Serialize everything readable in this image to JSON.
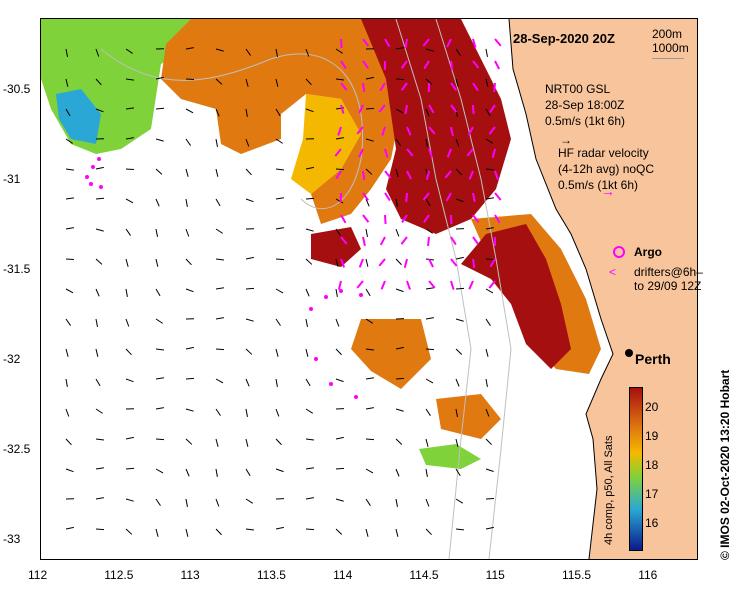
{
  "map": {
    "date_label": "28-Sep-2020 20Z",
    "depth_contours": [
      "200m",
      "1000m"
    ],
    "credit": "©  IMOS 02-Oct-2020 13:20 Hobart",
    "city": "Perth"
  },
  "axes": {
    "x_ticks": [
      "112",
      "112.5",
      "113",
      "113.5",
      "114",
      "114.5",
      "115",
      "115.5",
      "116"
    ],
    "x_values": [
      112,
      112.5,
      113,
      113.5,
      114,
      114.5,
      115,
      115.5,
      116
    ],
    "y_ticks": [
      "-30.5",
      "-31",
      "-31.5",
      "-32",
      "-32.5",
      "-33"
    ],
    "y_values": [
      -30.5,
      -31,
      -31.5,
      -32,
      -32.5,
      -33
    ],
    "x_range": [
      112,
      116.3
    ],
    "y_range": [
      -33.1,
      -30.1
    ]
  },
  "legend": {
    "gsl_title": "NRT00 GSL",
    "gsl_time": "28-Sep 18:00Z",
    "gsl_scale": "0.5m/s (1kt 6h)",
    "hf_title": "HF radar velocity",
    "hf_sub": "(4-12h avg) noQC",
    "hf_scale": "0.5m/s (1kt 6h)",
    "argo": "Argo",
    "drifters": "drifters@6h–",
    "drifters_to": "to 29/09 12Z"
  },
  "colorbar": {
    "ticks": [
      "20",
      "19",
      "18",
      "17",
      "16"
    ],
    "values": [
      20,
      19,
      18,
      17,
      16
    ],
    "range": [
      15.3,
      20.5
    ],
    "label": "4h comp, p50, All Sats"
  },
  "colors": {
    "land": "#f8c49b",
    "sst_hot": "#a50f0f",
    "sst_warm": "#e07a10",
    "sst_mid": "#f5b800",
    "sst_cool": "#7fd23a",
    "sst_cold": "#2aa7d4",
    "hf_arrow": "#ff00ff"
  }
}
